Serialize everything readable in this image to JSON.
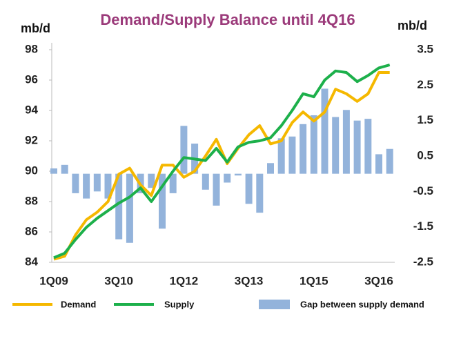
{
  "chart_data": {
    "type": "combo",
    "title": "Demand/Supply Balance until 4Q16",
    "y_label": "mb/d",
    "y2_label": "mb/d",
    "categories": [
      "1Q09",
      null,
      null,
      null,
      null,
      null,
      "3Q10",
      null,
      null,
      null,
      null,
      null,
      "1Q12",
      null,
      null,
      null,
      null,
      null,
      "3Q13",
      null,
      null,
      null,
      null,
      null,
      "1Q15",
      null,
      null,
      null,
      null,
      null,
      "3Q16",
      null
    ],
    "ylim": [
      84,
      98
    ],
    "yticks": [
      84,
      86,
      88,
      90,
      92,
      94,
      96,
      98
    ],
    "y2lim": [
      -2.5,
      3.5
    ],
    "y2ticks": [
      -2.5,
      -1.5,
      -0.5,
      0.5,
      1.5,
      2.5,
      3.5
    ],
    "series": [
      {
        "name": "Gap between supply demand",
        "type": "bar",
        "axis": "y2",
        "color": "#93b3db",
        "values": [
          0.15,
          0.25,
          -0.55,
          -0.7,
          -0.5,
          -0.7,
          -1.85,
          -1.95,
          -0.55,
          -0.4,
          -1.55,
          -0.55,
          1.35,
          0.85,
          -0.45,
          -0.9,
          -0.25,
          -0.05,
          -0.85,
          -1.1,
          0.3,
          1.0,
          1.05,
          1.4,
          1.65,
          2.4,
          1.6,
          1.8,
          1.5,
          1.55,
          0.55,
          0.7
        ]
      },
      {
        "name": "Demand",
        "type": "line",
        "color": "#f5b800",
        "values": [
          84.2,
          84.4,
          85.8,
          86.8,
          87.3,
          88.0,
          89.8,
          90.2,
          89.1,
          88.4,
          90.4,
          90.4,
          89.6,
          90.0,
          91.0,
          92.1,
          90.5,
          91.5,
          92.4,
          93.0,
          91.8,
          92.0,
          93.2,
          93.9,
          93.3,
          93.9,
          95.4,
          95.1,
          94.6,
          95.1,
          96.5,
          96.5
        ]
      },
      {
        "name": "Supply",
        "type": "line",
        "color": "#1db04b",
        "values": [
          84.3,
          84.6,
          85.5,
          86.3,
          86.9,
          87.4,
          87.9,
          88.3,
          88.9,
          88.0,
          89.0,
          90.0,
          90.9,
          90.8,
          90.7,
          91.5,
          90.6,
          91.6,
          91.9,
          92.0,
          92.2,
          93.0,
          94.0,
          95.1,
          94.9,
          96.0,
          96.6,
          96.5,
          95.9,
          96.3,
          96.8,
          97.0
        ]
      }
    ]
  }
}
